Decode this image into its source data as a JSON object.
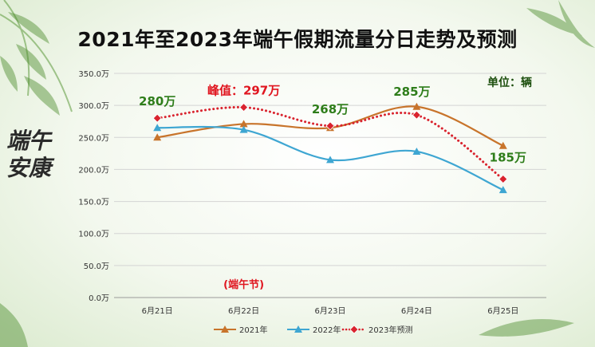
{
  "title": "2021年至2023年端午假期流量分日走势及预测",
  "unit_label": "单位：辆",
  "calligraphy": "端午安康",
  "chart_data": {
    "type": "line",
    "title": "2021年至2023年端午假期流量分日走势及预测",
    "categories": [
      "6月21日",
      "6月22日",
      "6月23日",
      "6月24日",
      "6月25日"
    ],
    "y_ticks": [
      "0.0万",
      "50.0万",
      "100.0万",
      "150.0万",
      "200.0万",
      "250.0万",
      "300.0万",
      "350.0万"
    ],
    "ylim": [
      0,
      350
    ],
    "grid": true,
    "legend_position": "bottom",
    "series": [
      {
        "name": "2021年",
        "values": [
          250,
          271,
          265,
          298,
          237
        ],
        "color": "#c8742b",
        "marker": "triangle",
        "dash": "solid"
      },
      {
        "name": "2022年",
        "values": [
          265,
          262,
          215,
          228,
          168
        ],
        "color": "#3ea6d2",
        "marker": "triangle",
        "dash": "solid"
      },
      {
        "name": "2023年预测",
        "values": [
          280,
          297,
          268,
          285,
          185
        ],
        "color": "#d9232e",
        "marker": "diamond",
        "dash": "dotted"
      }
    ],
    "annotations": [
      {
        "text": "280万",
        "category": "6月21日",
        "value": 280,
        "color": "#2e7d1a"
      },
      {
        "text": "峰值：297万",
        "category": "6月22日",
        "value": 297,
        "color": "#e0151f"
      },
      {
        "text": "268万",
        "category": "6月23日",
        "value": 268,
        "color": "#2e7d1a"
      },
      {
        "text": "285万",
        "category": "6月24日",
        "value": 285,
        "color": "#2e7d1a"
      },
      {
        "text": "185万",
        "category": "6月25日",
        "value": 185,
        "color": "#2e7d1a"
      },
      {
        "text": "(端午节)",
        "category": "6月22日",
        "value": 0,
        "color": "#e0151f"
      }
    ]
  }
}
